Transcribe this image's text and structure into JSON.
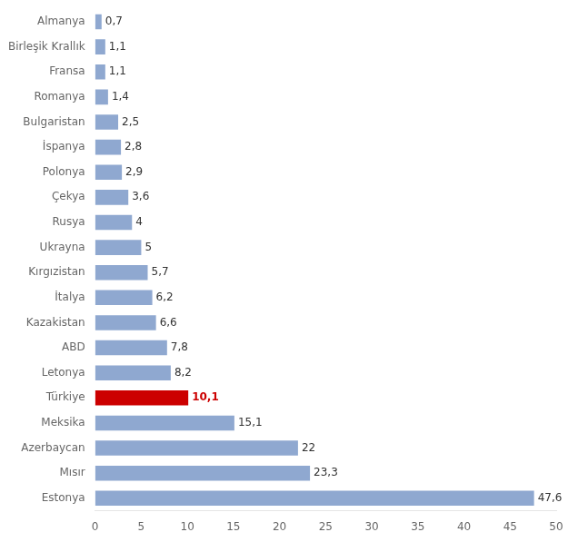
{
  "chart_data": {
    "type": "bar",
    "orientation": "horizontal",
    "categories": [
      "Estonya",
      "Mısır",
      "Azerbaycan",
      "Meksika",
      "Türkiye",
      "Letonya",
      "ABD",
      "Kazakistan",
      "İtalya",
      "Kırgızistan",
      "Ukrayna",
      "Rusya",
      "Çekya",
      "Polonya",
      "İspanya",
      "Bulgaristan",
      "Romanya",
      "Fransa",
      "Birleşik Krallık",
      "Almanya"
    ],
    "values": [
      47.6,
      23.3,
      22.0,
      15.1,
      10.1,
      8.2,
      7.8,
      6.6,
      6.2,
      5.7,
      5.0,
      4.0,
      3.6,
      2.9,
      2.8,
      2.5,
      1.4,
      1.1,
      1.1,
      0.7
    ],
    "value_labels": [
      "47,6",
      "23,3",
      "22",
      "15,1",
      "10,1",
      "8,2",
      "7,8",
      "6,6",
      "6,2",
      "5,7",
      "5",
      "4",
      "3,6",
      "2,9",
      "2,8",
      "2,5",
      "1,4",
      "1,1",
      "1,1",
      "0,7"
    ],
    "colors": [
      "#8fa8d0",
      "#8fa8d0",
      "#8fa8d0",
      "#8fa8d0",
      "#cc0000",
      "#8fa8d0",
      "#8fa8d0",
      "#8fa8d0",
      "#8fa8d0",
      "#8fa8d0",
      "#8fa8d0",
      "#8fa8d0",
      "#8fa8d0",
      "#8fa8d0",
      "#8fa8d0",
      "#8fa8d0",
      "#8fa8d0",
      "#8fa8d0",
      "#8fa8d0",
      "#8fa8d0"
    ],
    "xlim": [
      0,
      50
    ],
    "xticks": [
      0,
      5,
      10,
      15,
      20,
      25,
      30,
      35,
      40,
      45,
      50
    ],
    "grid": false,
    "data_labels": true
  }
}
